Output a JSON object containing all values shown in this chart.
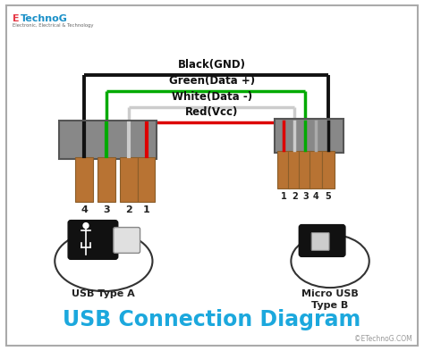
{
  "bg_color": "#ffffff",
  "title": "USB Connection Diagram",
  "title_color": "#1ca8dd",
  "title_fontsize": 17,
  "watermark": "©ETechnoG.COM",
  "logo_e_color": "#e63946",
  "logo_rest_color": "#1a90c8",
  "wire_labels": [
    "Black(GND)",
    "Green(Data +)",
    "White(Data -)",
    "Red(Vcc)"
  ],
  "wire_colors": [
    "#111111",
    "#00aa00",
    "#cccccc",
    "#dd0000"
  ],
  "wire_lw": [
    2.8,
    2.5,
    2.5,
    2.5
  ],
  "pin_color": "#b87333",
  "connector_fill": "#888888",
  "connector_edge": "#555555",
  "label_color": "#111111",
  "label_fontsize": 8.5,
  "pin_label_fontsize": 8,
  "labels_a": [
    "4",
    "3",
    "2",
    "1"
  ],
  "labels_b": [
    "1",
    "2",
    "3",
    "4",
    "5"
  ],
  "usba_label": "USB Type A",
  "usbb_label": "Micro USB\nType B"
}
